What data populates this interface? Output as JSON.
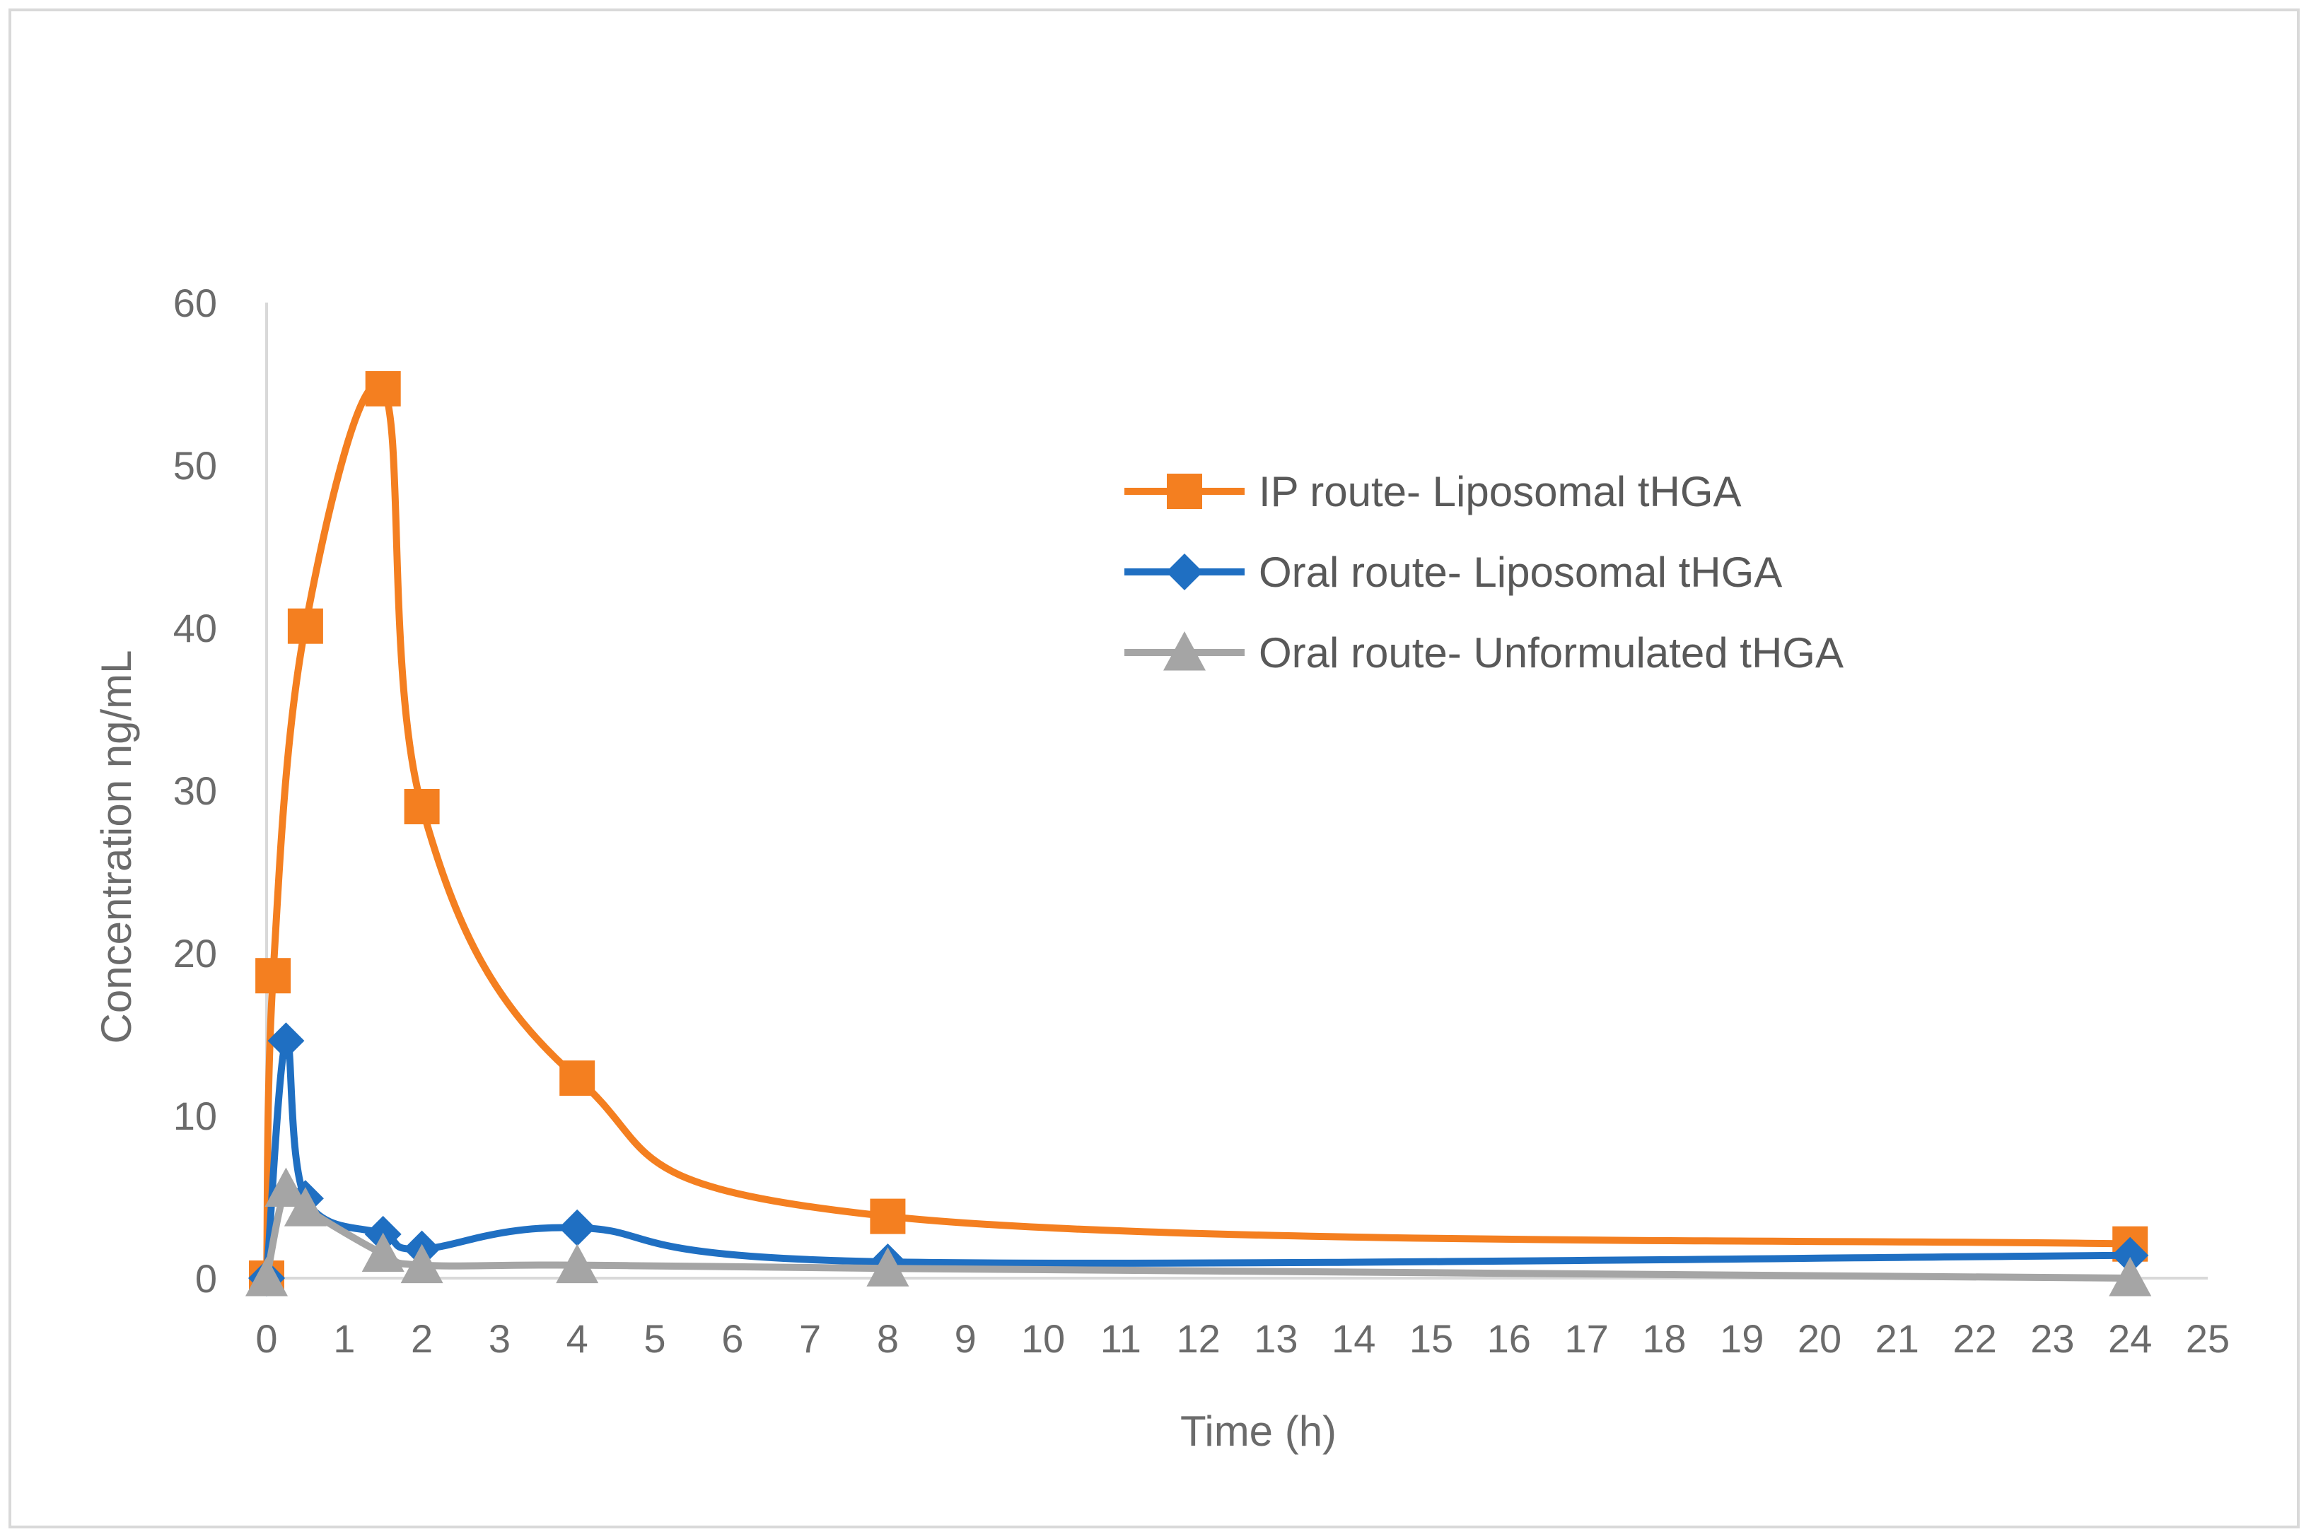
{
  "chart_data": {
    "type": "line",
    "title": "",
    "xlabel": "Time (h)",
    "ylabel": "Concentration ng/mL",
    "xlim": [
      0,
      25
    ],
    "ylim": [
      0,
      60
    ],
    "x_ticks": [
      "0",
      "1",
      "2",
      "3",
      "4",
      "5",
      "6",
      "7",
      "8",
      "9",
      "10",
      "11",
      "12",
      "13",
      "14",
      "15",
      "16",
      "17",
      "18",
      "19",
      "20",
      "21",
      "22",
      "23",
      "24",
      "25"
    ],
    "y_ticks": [
      "0",
      "10",
      "20",
      "30",
      "40",
      "50",
      "60"
    ],
    "grid": false,
    "legend_position": "top-right",
    "series": [
      {
        "name": "IP route- Liposomal tHGA",
        "color": "#f47f20",
        "marker": "square",
        "x": [
          0,
          0.083,
          0.5,
          1.5,
          2,
          4,
          8,
          24
        ],
        "y": [
          0,
          18.6,
          40.1,
          54.7,
          29.0,
          12.3,
          3.8,
          2.1
        ]
      },
      {
        "name": "Oral route- Liposomal tHGA",
        "color": "#1f6fc2",
        "marker": "diamond",
        "x": [
          0,
          0.25,
          0.5,
          1.5,
          2,
          4,
          8,
          24
        ],
        "y": [
          0,
          14.6,
          4.9,
          2.7,
          1.8,
          3.1,
          1.0,
          1.4
        ]
      },
      {
        "name": "Oral route- Unformulated tHGA",
        "color": "#a5a5a5",
        "marker": "triangle",
        "x": [
          0,
          0.25,
          0.5,
          1.5,
          2,
          4,
          8,
          24
        ],
        "y": [
          0,
          5.5,
          4.3,
          1.5,
          0.8,
          0.8,
          0.6,
          0.0
        ]
      }
    ]
  }
}
